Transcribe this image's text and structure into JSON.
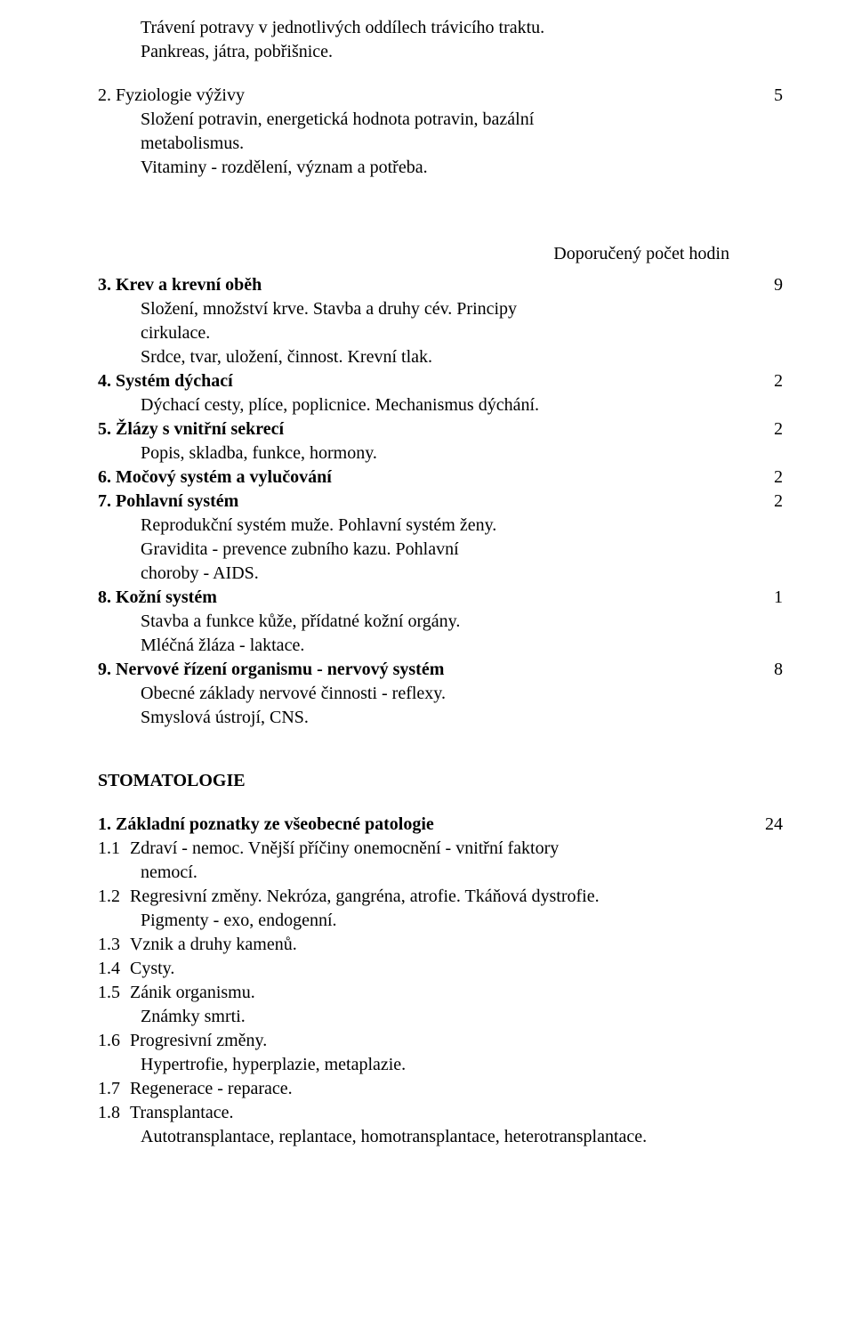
{
  "preamble": {
    "l1": "Trávení potravy v jednotlivých oddílech trávicího traktu.",
    "l2": "Pankreas, játra, pobřišnice."
  },
  "item2": {
    "title": "2. Fyziologie výživy",
    "hours": "5",
    "d1": "Složení potravin, energetická hodnota potravin, bazální",
    "d2": "metabolismus.",
    "d3": "Vitaminy - rozdělení, význam a potřeba."
  },
  "right_header": "Doporučený počet hodin",
  "item3": {
    "title": "3. Krev a krevní oběh",
    "hours": "9",
    "d1": "Složení, množství krve. Stavba a druhy cév. Principy",
    "d2": "cirkulace.",
    "d3": "Srdce, tvar, uložení, činnost. Krevní tlak."
  },
  "item4": {
    "title": "4. Systém dýchací",
    "hours": "2",
    "d1": "Dýchací cesty, plíce, poplicnice. Mechanismus dýchání."
  },
  "item5": {
    "title": "5. Žlázy s vnitřní sekrecí",
    "hours": "2",
    "d1": "Popis, skladba, funkce, hormony."
  },
  "item6": {
    "title": "6. Močový systém a vylučování",
    "hours": "2"
  },
  "item7": {
    "title": "7. Pohlavní systém",
    "hours": "2",
    "d1": "Reprodukční systém muže. Pohlavní systém ženy.",
    "d2": "Gravidita - prevence zubního kazu. Pohlavní",
    "d3": "choroby - AIDS."
  },
  "item8": {
    "title": "8. Kožní systém",
    "hours": "1",
    "d1": "Stavba a funkce kůže, přídatné kožní orgány.",
    "d2": "Mléčná žláza - laktace."
  },
  "item9": {
    "title": "9. Nervové řízení organismu - nervový systém",
    "hours": "8",
    "d1": "Obecné základy nervové činnosti - reflexy.",
    "d2": "Smyslová ústrojí, CNS."
  },
  "stoma_title": "STOMATOLOGIE",
  "s1": {
    "title": "1. Základní poznatky ze všeobecné patologie",
    "hours": "24",
    "i11_num": "1.1",
    "i11_l1": "Zdraví - nemoc. Vnější příčiny onemocnění - vnitřní faktory",
    "i11_l2": "nemocí.",
    "i12_num": "1.2",
    "i12_l1": "Regresivní změny. Nekróza, gangréna, atrofie. Tkáňová dystrofie.",
    "i12_l2": "Pigmenty - exo, endogenní.",
    "i13_num": "1.3",
    "i13_l1": "Vznik   a druhy kamenů.",
    "i14_num": "1.4",
    "i14_l1": "Cysty.",
    "i15_num": "1.5",
    "i15_l1": "Zánik organismu.",
    "i15_l2": "Známky smrti.",
    "i16_num": "1.6",
    "i16_l1": "Progresivní změny.",
    "i16_l2": "Hypertrofie, hyperplazie, metaplazie.",
    "i17_num": "1.7",
    "i17_l1": "Regenerace - reparace.",
    "i18_num": "1.8",
    "i18_l1": "Transplantace.",
    "i18_l2": "Autotransplantace, replantace, homotransplantace, heterotransplantace."
  }
}
